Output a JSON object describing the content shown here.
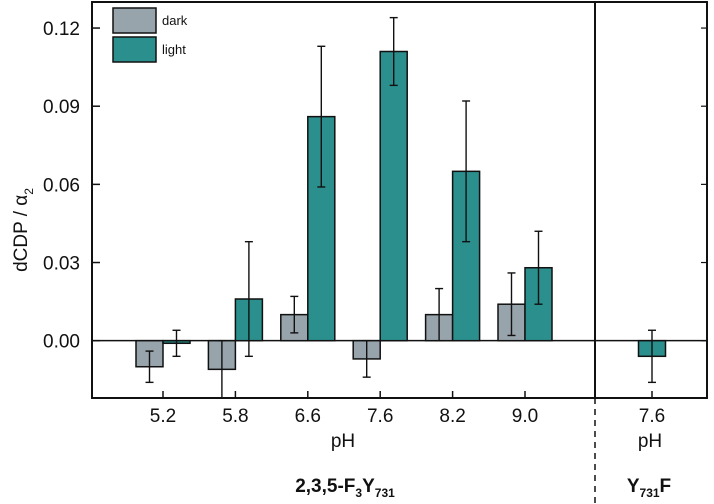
{
  "chart_data": {
    "type": "bar",
    "title": "",
    "ylabel": "dCDP / α",
    "ylabel_sub": "2",
    "ylim": [
      -0.022,
      0.13
    ],
    "yticks": [
      "0.00",
      "0.03",
      "0.06",
      "0.09",
      "0.12"
    ],
    "ytick_values": [
      0.0,
      0.03,
      0.06,
      0.09,
      0.12
    ],
    "colors": {
      "dark": "#98a4ab",
      "light": "#2a8f8d"
    },
    "legend": [
      {
        "key": "dark",
        "label": "dark"
      },
      {
        "key": "light",
        "label": "light"
      }
    ],
    "panels": [
      {
        "xlabel": "pH",
        "group_label": {
          "main": "2,3,5-F",
          "sub1": "3",
          "mid": "Y",
          "sub2": "731"
        },
        "categories": [
          "5.2",
          "5.8",
          "6.6",
          "7.6",
          "8.2",
          "9.0"
        ],
        "series": [
          {
            "name": "dark",
            "values": [
              -0.01,
              -0.011,
              0.01,
              -0.007,
              0.01,
              0.014
            ],
            "errors": [
              0.006,
              0.011,
              0.007,
              0.007,
              0.01,
              0.012
            ]
          },
          {
            "name": "light",
            "values": [
              -0.001,
              0.016,
              0.086,
              0.111,
              0.065,
              0.028
            ],
            "errors": [
              0.005,
              0.022,
              0.027,
              0.013,
              0.027,
              0.014
            ]
          }
        ]
      },
      {
        "xlabel": "pH",
        "group_label": {
          "main": "Y",
          "sub1": "731",
          "mid": "F",
          "sub2": ""
        },
        "categories": [
          "7.6"
        ],
        "series": [
          {
            "name": "light",
            "values": [
              -0.006
            ],
            "errors": [
              0.01
            ]
          }
        ]
      }
    ]
  }
}
